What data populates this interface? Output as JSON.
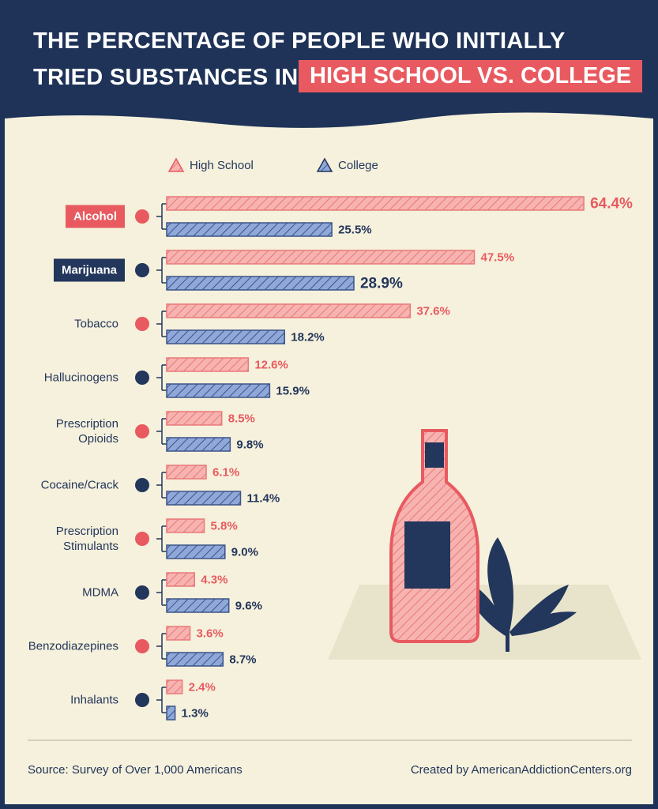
{
  "chart_data": {
    "type": "bar",
    "title": [
      "THE PERCENTAGE OF PEOPLE WHO INITIALLY",
      "TRIED SUBSTANCES IN"
    ],
    "title_highlight": "HIGH SCHOOL VS. COLLEGE",
    "categories": [
      "Alcohol",
      "Marijuana",
      "Tobacco",
      "Hallucinogens",
      "Prescription Opioids",
      "Cocaine/Crack",
      "Prescription Stimulants",
      "MDMA",
      "Benzodiazepines",
      "Inhalants"
    ],
    "series": [
      {
        "name": "High School",
        "color": "#e85a60",
        "values": [
          64.4,
          47.5,
          37.6,
          12.6,
          8.5,
          6.1,
          5.8,
          4.3,
          3.6,
          2.4
        ],
        "value_labels": [
          "64.4%",
          "47.5%",
          "37.6%",
          "12.6%",
          "8.5%",
          "6.1%",
          "5.8%",
          "4.3%",
          "3.6%",
          "2.4%"
        ]
      },
      {
        "name": "College",
        "color": "#23365c",
        "values": [
          25.5,
          28.9,
          18.2,
          15.9,
          9.8,
          11.4,
          9.0,
          9.6,
          8.7,
          1.3
        ],
        "value_labels": [
          "25.5%",
          "28.9%",
          "18.2%",
          "15.9%",
          "9.8%",
          "11.4%",
          "9.0%",
          "9.6%",
          "8.7%",
          "1.3%"
        ]
      }
    ],
    "source": "Source: Survey of Over 1,000 Americans",
    "credit": "Created by AmericanAddictionCenters.org"
  }
}
